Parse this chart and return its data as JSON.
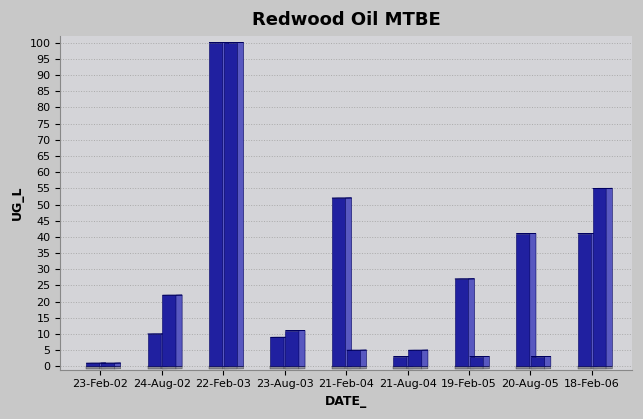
{
  "title": "Redwood Oil MTBE",
  "xlabel": "DATE_",
  "ylabel": "UG_L",
  "background_color": "#c8c8c8",
  "plot_bg_color": "#d4d4d8",
  "bar_front_color": "#2020a0",
  "bar_side_color": "#5858c0",
  "bar_top_color": "#4040b0",
  "bar_base_color": "#808080",
  "categories": [
    "23-Feb-02",
    "24-Aug-02",
    "22-Feb-03",
    "23-Aug-03",
    "21-Feb-04",
    "21-Aug-04",
    "19-Feb-05",
    "20-Aug-05",
    "18-Feb-06"
  ],
  "values": [
    1,
    10,
    100,
    9,
    52,
    3,
    27,
    41,
    41
  ],
  "values2": [
    1,
    22,
    100,
    11,
    5,
    5,
    3,
    3,
    55
  ],
  "ylim": [
    0,
    100
  ],
  "yticks": [
    0,
    5,
    10,
    15,
    20,
    25,
    30,
    35,
    40,
    45,
    50,
    55,
    60,
    65,
    70,
    75,
    80,
    85,
    90,
    95,
    100
  ],
  "title_fontsize": 13,
  "axis_fontsize": 9,
  "tick_fontsize": 8
}
